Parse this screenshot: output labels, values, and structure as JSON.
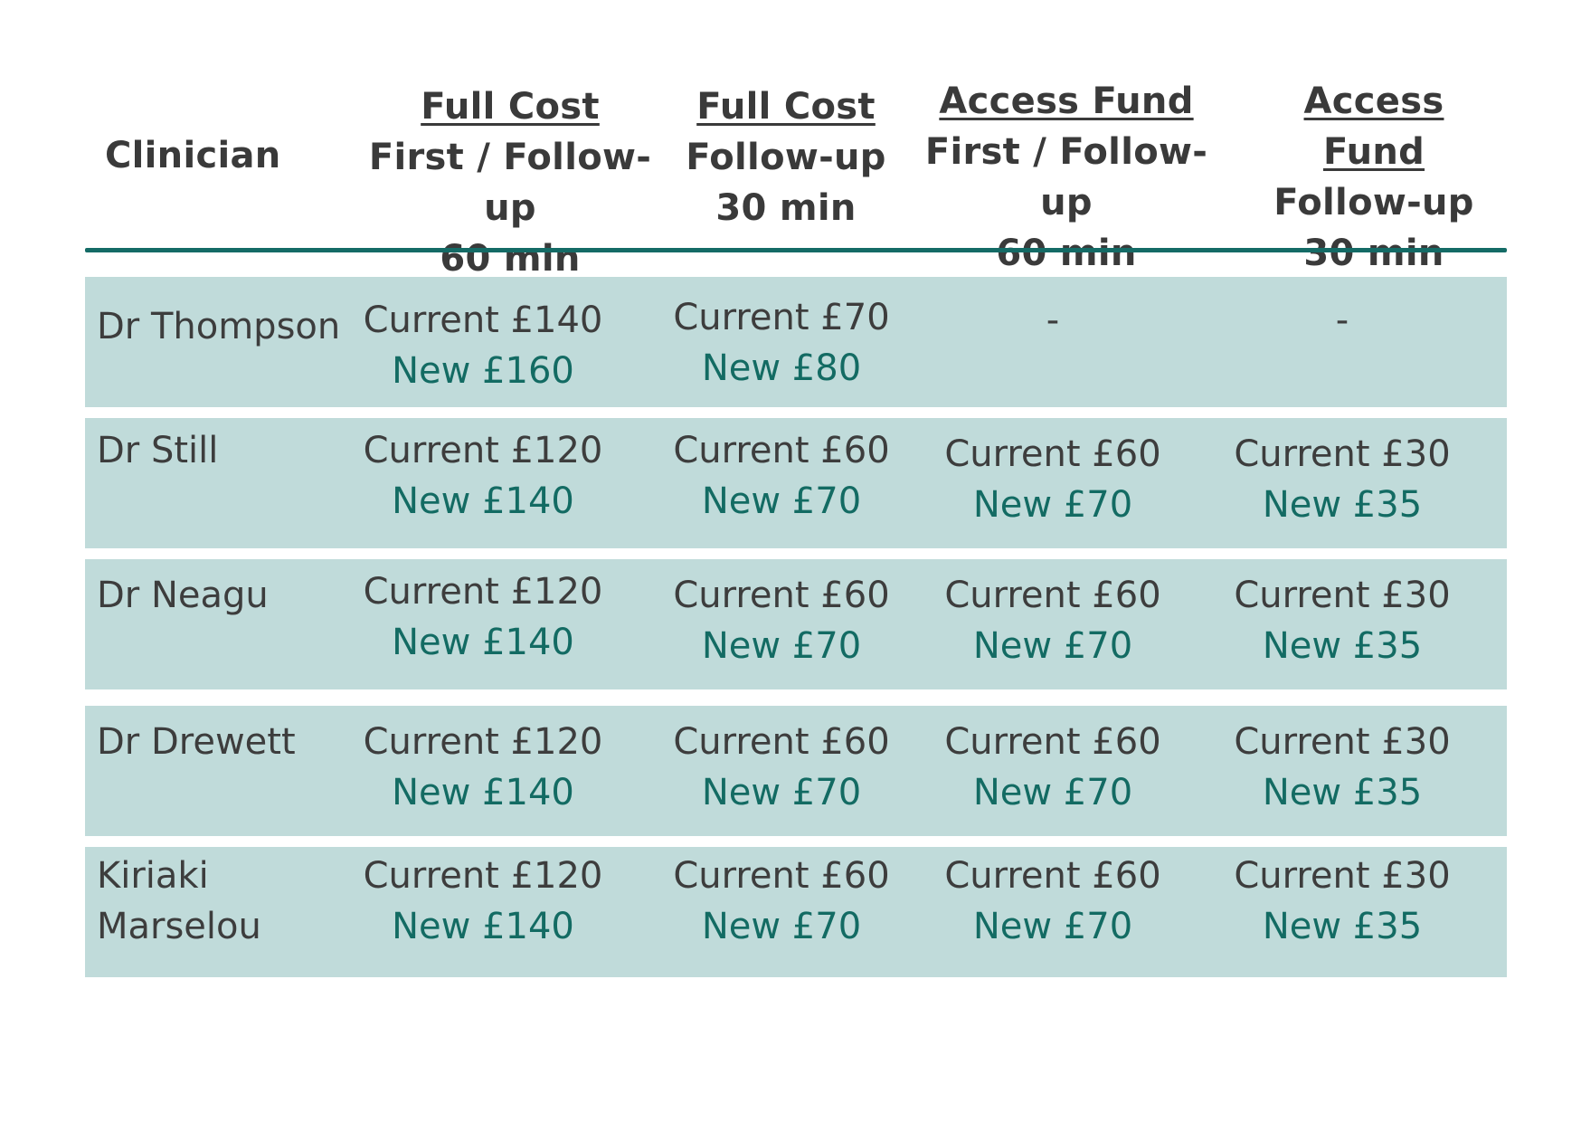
{
  "header": {
    "clinician": "Clinician",
    "columns": [
      {
        "title": "Full Cost",
        "line1": "First / Follow-up",
        "line2": "60 min"
      },
      {
        "title": "Full Cost",
        "line1": "Follow-up",
        "line2": "30 min"
      },
      {
        "title": "Access Fund",
        "line1": "First / Follow-up",
        "line2": "60 min"
      },
      {
        "title": "Access Fund",
        "line1": "Follow-up",
        "line2": "30 min"
      }
    ]
  },
  "rows": [
    {
      "clinician": "Dr Thompson",
      "full_60": {
        "current": "Current £140",
        "new": "New £160"
      },
      "full_30": {
        "current": "Current £70",
        "new": "New £80"
      },
      "access_60": "-",
      "access_30": "-"
    },
    {
      "clinician": "Dr Still",
      "full_60": {
        "current": "Current £120",
        "new": "New £140"
      },
      "full_30": {
        "current": "Current £60",
        "new": "New £70"
      },
      "access_60": {
        "current": "Current £60",
        "new": "New £70"
      },
      "access_30": {
        "current": "Current £30",
        "new": "New £35"
      }
    },
    {
      "clinician": "Dr Neagu",
      "full_60": {
        "current": "Current £120",
        "new": "New £140"
      },
      "full_30": {
        "current": "Current £60",
        "new": "New £70"
      },
      "access_60": {
        "current": "Current £60",
        "new": "New £70"
      },
      "access_30": {
        "current": "Current £30",
        "new": "New £35"
      }
    },
    {
      "clinician": "Dr Drewett",
      "full_60": {
        "current": "Current £120",
        "new": "New £140"
      },
      "full_30": {
        "current": "Current £60",
        "new": "New £70"
      },
      "access_60": {
        "current": "Current £60",
        "new": "New £70"
      },
      "access_30": {
        "current": "Current £30",
        "new": "New £35"
      }
    },
    {
      "clinician": "Kiriaki Marselou",
      "full_60": {
        "current": "Current £120",
        "new": "New £140"
      },
      "full_30": {
        "current": "Current £60",
        "new": "New £70"
      },
      "access_60": {
        "current": "Current £60",
        "new": "New £70"
      },
      "access_30": {
        "current": "Current £30",
        "new": "New £35"
      }
    }
  ],
  "colors": {
    "row_bg": "#c0dbda",
    "rule": "#146b66",
    "new_text": "#136b63",
    "current_text": "#3d3d3d"
  }
}
